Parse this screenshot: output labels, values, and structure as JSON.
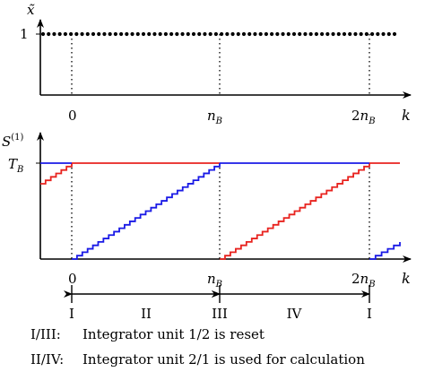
{
  "top_panel": {
    "y_axis_label": "x̃",
    "x_axis_label": "k",
    "y_tick": "1",
    "x_ticks": [
      "0",
      "n_B",
      "2n_B"
    ],
    "dot_count": 64,
    "dot_value": 1
  },
  "bottom_panel": {
    "y_axis_label": "S(1)",
    "y_axis_label_main": "S",
    "y_axis_label_sup": "(1)",
    "x_axis_label": "k",
    "y_tick_main": "T",
    "y_tick_sub": "B",
    "x_ticks": [
      {
        "main": "0",
        "sub": ""
      },
      {
        "main": "n",
        "sub": "B"
      },
      {
        "main": "2n",
        "sub": "B"
      }
    ],
    "colors": {
      "red": "#e8231f",
      "blue": "#1a1ae6",
      "axis": "#000000"
    }
  },
  "phase_bar": {
    "boundaries": [
      "I",
      "III",
      "I"
    ],
    "intervals": [
      "II",
      "IV"
    ]
  },
  "legend": [
    {
      "key": "I/III:",
      "text": "Integrator unit 1/2 is reset"
    },
    {
      "key": "II/IV:",
      "text": "Integrator unit 2/1 is used for calculation"
    }
  ]
}
